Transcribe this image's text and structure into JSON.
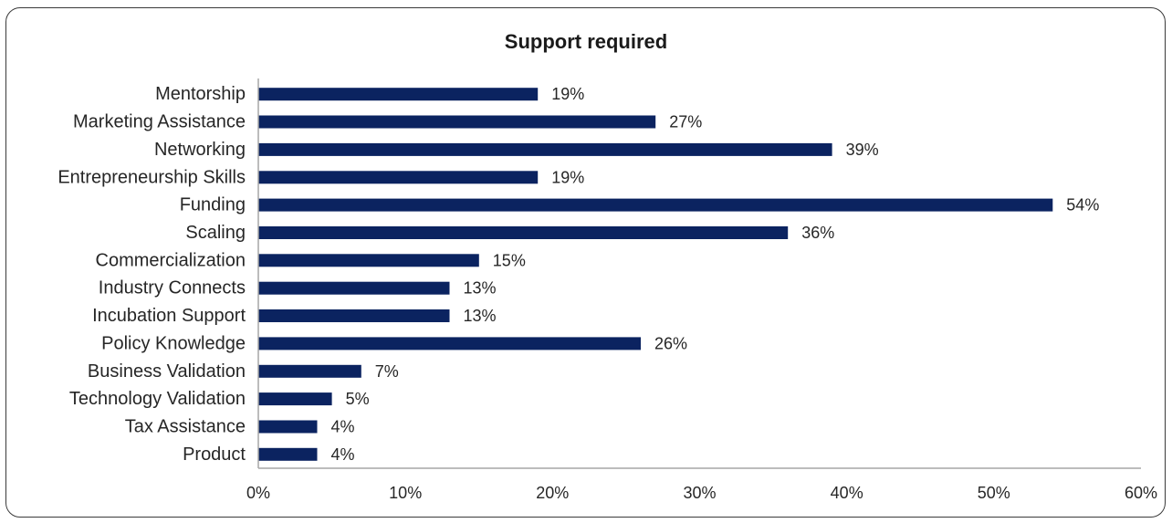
{
  "chart_data": {
    "type": "bar",
    "orientation": "horizontal",
    "title": "Support required",
    "categories": [
      "Mentorship",
      "Marketing Assistance",
      "Networking",
      "Entrepreneurship Skills",
      "Funding",
      "Scaling",
      "Commercialization",
      "Industry Connects",
      "Incubation Support",
      "Policy Knowledge",
      "Business Validation",
      "Technology Validation",
      "Tax Assistance",
      "Product"
    ],
    "values": [
      19,
      27,
      39,
      19,
      54,
      36,
      15,
      13,
      13,
      26,
      7,
      5,
      4,
      4
    ],
    "value_labels": [
      "19%",
      "27%",
      "39%",
      "19%",
      "54%",
      "36%",
      "15%",
      "13%",
      "13%",
      "26%",
      "7%",
      "5%",
      "4%",
      "4%"
    ],
    "xlim": [
      0,
      60
    ],
    "x_ticks": [
      0,
      10,
      20,
      30,
      40,
      50,
      60
    ],
    "x_tick_labels": [
      "0%",
      "10%",
      "20%",
      "30%",
      "40%",
      "50%",
      "60%"
    ],
    "xlabel": "",
    "ylabel": "",
    "grid": false,
    "legend": "none",
    "bar_color": "#0b2360",
    "axis_color": "#a6a6a6"
  }
}
